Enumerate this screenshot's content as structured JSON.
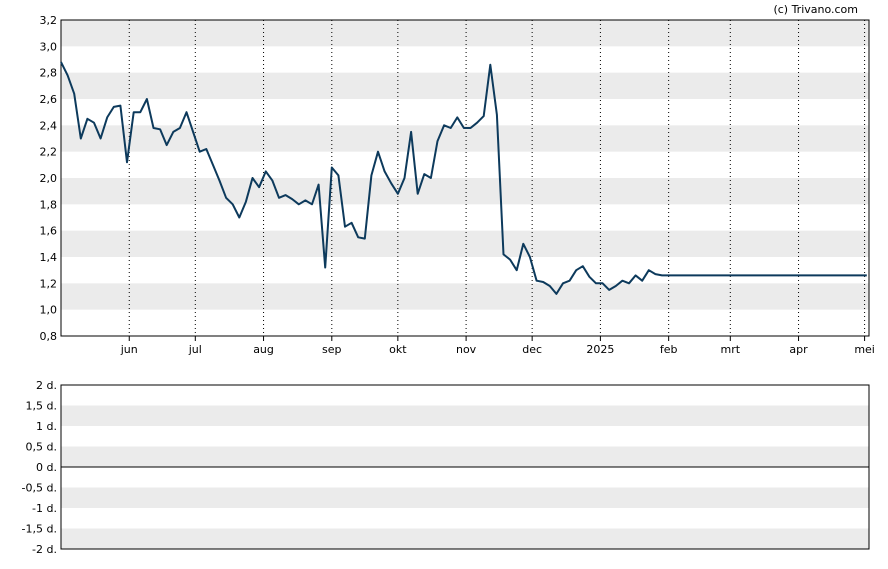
{
  "watermark": "(c) Trivano.com",
  "colors": {
    "line": "#0d3a5c",
    "band": "#ebebeb",
    "grid": "#000000"
  },
  "chart_data": [
    {
      "type": "line",
      "title": "",
      "ylim": [
        0.8,
        3.2
      ],
      "y_ticks": [
        "3,2",
        "3,0",
        "2,8",
        "2,6",
        "2,4",
        "2,2",
        "2,0",
        "1,8",
        "1,6",
        "1,4",
        "1,2",
        "1,0",
        "0,8"
      ],
      "y_tick_values": [
        3.2,
        3.0,
        2.8,
        2.6,
        2.4,
        2.2,
        2.0,
        1.8,
        1.6,
        1.4,
        1.2,
        1.0,
        0.8
      ],
      "x_ticks": [
        "jun",
        "jul",
        "aug",
        "sep",
        "okt",
        "nov",
        "dec",
        "2025",
        "feb",
        "mrt",
        "apr",
        "mei"
      ],
      "grid": true,
      "series": [
        {
          "x": [
            "2024-05-01",
            "2024-05-04",
            "2024-05-07",
            "2024-05-10",
            "2024-05-13",
            "2024-05-16",
            "2024-05-19",
            "2024-05-22",
            "2024-05-25",
            "2024-05-28",
            "2024-05-31",
            "2024-06-03",
            "2024-06-06",
            "2024-06-09",
            "2024-06-12",
            "2024-06-15",
            "2024-06-18",
            "2024-06-21",
            "2024-06-24",
            "2024-06-27",
            "2024-06-30",
            "2024-07-03",
            "2024-07-06",
            "2024-07-09",
            "2024-07-12",
            "2024-07-15",
            "2024-07-18",
            "2024-07-21",
            "2024-07-24",
            "2024-07-27",
            "2024-07-30",
            "2024-08-02",
            "2024-08-05",
            "2024-08-08",
            "2024-08-11",
            "2024-08-14",
            "2024-08-17",
            "2024-08-20",
            "2024-08-23",
            "2024-08-26",
            "2024-08-29",
            "2024-09-01",
            "2024-09-04",
            "2024-09-07",
            "2024-09-10",
            "2024-09-13",
            "2024-09-16",
            "2024-09-19",
            "2024-09-22",
            "2024-09-25",
            "2024-09-28",
            "2024-10-01",
            "2024-10-04",
            "2024-10-07",
            "2024-10-10",
            "2024-10-13",
            "2024-10-16",
            "2024-10-19",
            "2024-10-22",
            "2024-10-25",
            "2024-10-28",
            "2024-10-31",
            "2024-11-03",
            "2024-11-06",
            "2024-11-09",
            "2024-11-12",
            "2024-11-15",
            "2024-11-18",
            "2024-11-21",
            "2024-11-24",
            "2024-11-27",
            "2024-11-30",
            "2024-12-03",
            "2024-12-06",
            "2024-12-09",
            "2024-12-12",
            "2024-12-15",
            "2024-12-18",
            "2024-12-21",
            "2024-12-24",
            "2024-12-27",
            "2024-12-30",
            "2025-01-02",
            "2025-01-05",
            "2025-01-08",
            "2025-01-11",
            "2025-01-14",
            "2025-01-17",
            "2025-01-20",
            "2025-01-23",
            "2025-01-26",
            "2025-01-29",
            "2025-02-01",
            "2025-02-04",
            "2025-02-07",
            "2025-02-10",
            "2025-02-13",
            "2025-02-16",
            "2025-02-19",
            "2025-02-22",
            "2025-02-25",
            "2025-02-28",
            "2025-03-03",
            "2025-03-06",
            "2025-03-09",
            "2025-03-12",
            "2025-03-15",
            "2025-03-18",
            "2025-03-21",
            "2025-03-24",
            "2025-03-27",
            "2025-03-30",
            "2025-04-02",
            "2025-04-05",
            "2025-04-08",
            "2025-04-11",
            "2025-04-14",
            "2025-04-17",
            "2025-04-20",
            "2025-04-23",
            "2025-04-26",
            "2025-04-29",
            "2025-05-02"
          ],
          "values": [
            2.88,
            2.78,
            2.64,
            2.3,
            2.45,
            2.42,
            2.3,
            2.46,
            2.54,
            2.55,
            2.12,
            2.5,
            2.5,
            2.6,
            2.38,
            2.37,
            2.25,
            2.35,
            2.38,
            2.5,
            2.35,
            2.2,
            2.22,
            2.1,
            1.98,
            1.85,
            1.8,
            1.7,
            1.82,
            2.0,
            1.93,
            2.05,
            1.98,
            1.85,
            1.87,
            1.84,
            1.8,
            1.83,
            1.8,
            1.95,
            1.32,
            2.08,
            2.02,
            1.63,
            1.66,
            1.55,
            1.54,
            2.02,
            2.2,
            2.05,
            1.96,
            1.88,
            2.0,
            2.35,
            1.88,
            2.03,
            2.0,
            2.28,
            2.4,
            2.38,
            2.46,
            2.38,
            2.38,
            2.42,
            2.47,
            2.86,
            2.48,
            1.42,
            1.38,
            1.3,
            1.5,
            1.4,
            1.22,
            1.21,
            1.18,
            1.12,
            1.2,
            1.22,
            1.3,
            1.33,
            1.25,
            1.2,
            1.2,
            1.15,
            1.18,
            1.22,
            1.2,
            1.26,
            1.22,
            1.3,
            1.27,
            1.26,
            1.26,
            1.26,
            1.26,
            1.26,
            1.26,
            1.26,
            1.26,
            1.26,
            1.26,
            1.26,
            1.26,
            1.26,
            1.26,
            1.26,
            1.26,
            1.26,
            1.26,
            1.26,
            1.26,
            1.26,
            1.26,
            1.26,
            1.26,
            1.26,
            1.26,
            1.26,
            1.26,
            1.26,
            1.26,
            1.26,
            1.26
          ]
        }
      ]
    },
    {
      "type": "bar",
      "title": "",
      "ylim": [
        -2,
        2
      ],
      "y_ticks": [
        "2 d.",
        "1,5 d.",
        "1 d.",
        "0,5 d.",
        "0 d.",
        "-0,5 d.",
        "-1 d.",
        "-1,5 d.",
        "-2 d."
      ],
      "grid": true,
      "values": []
    }
  ]
}
